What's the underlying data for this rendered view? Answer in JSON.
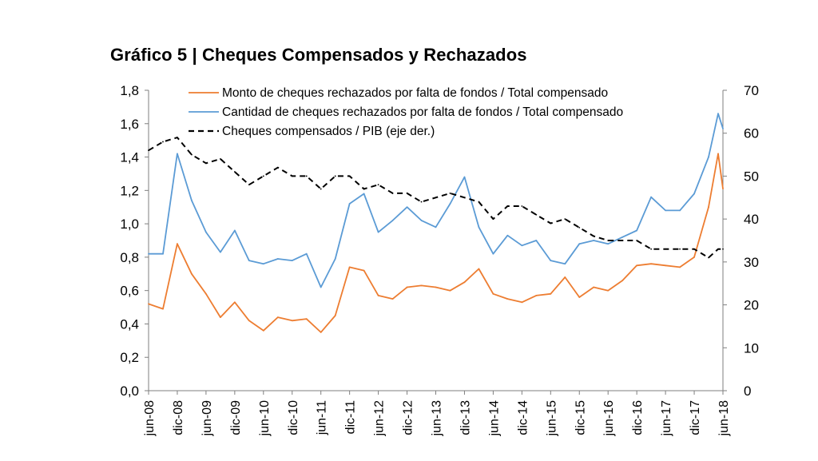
{
  "chart_data": {
    "type": "line",
    "title": "Gráfico 5 | Cheques Compensados y Rechazados",
    "y_left": {
      "min": 0,
      "max": 1.8,
      "step": 0.2,
      "tick_labels": [
        "0,0",
        "0,2",
        "0,4",
        "0,6",
        "0,8",
        "1,0",
        "1,2",
        "1,4",
        "1,6",
        "1,8"
      ]
    },
    "y_right": {
      "min": 0,
      "max": 70,
      "step": 10,
      "tick_labels": [
        "0",
        "10",
        "20",
        "30",
        "40",
        "50",
        "60",
        "70"
      ]
    },
    "x_tick_labels": [
      "jun-08",
      "dic-08",
      "jun-09",
      "dic-09",
      "jun-10",
      "dic-10",
      "jun-11",
      "dic-11",
      "jun-12",
      "dic-12",
      "jun-13",
      "dic-13",
      "jun-14",
      "dic-14",
      "jun-15",
      "dic-15",
      "jun-16",
      "dic-16",
      "jun-17",
      "dic-17",
      "jun-18"
    ],
    "grid": false,
    "legend_position": "top",
    "series": [
      {
        "name": "Monto de cheques rechazados por falta de fondos / Total compensado",
        "axis": "left",
        "color": "#ED7D31",
        "dash": "solid",
        "points": [
          [
            "jun-08",
            0.52
          ],
          [
            "sep-08",
            0.49
          ],
          [
            "dic-08",
            0.88
          ],
          [
            "mar-09",
            0.7
          ],
          [
            "jun-09",
            0.58
          ],
          [
            "sep-09",
            0.44
          ],
          [
            "dic-09",
            0.53
          ],
          [
            "mar-10",
            0.42
          ],
          [
            "jun-10",
            0.36
          ],
          [
            "sep-10",
            0.44
          ],
          [
            "dic-10",
            0.42
          ],
          [
            "mar-11",
            0.43
          ],
          [
            "jun-11",
            0.35
          ],
          [
            "sep-11",
            0.45
          ],
          [
            "dic-11",
            0.74
          ],
          [
            "mar-12",
            0.72
          ],
          [
            "jun-12",
            0.57
          ],
          [
            "sep-12",
            0.55
          ],
          [
            "dic-12",
            0.62
          ],
          [
            "mar-13",
            0.63
          ],
          [
            "jun-13",
            0.62
          ],
          [
            "sep-13",
            0.6
          ],
          [
            "dic-13",
            0.65
          ],
          [
            "mar-14",
            0.73
          ],
          [
            "jun-14",
            0.58
          ],
          [
            "sep-14",
            0.55
          ],
          [
            "dic-14",
            0.53
          ],
          [
            "mar-15",
            0.57
          ],
          [
            "jun-15",
            0.58
          ],
          [
            "sep-15",
            0.68
          ],
          [
            "dic-15",
            0.56
          ],
          [
            "mar-16",
            0.62
          ],
          [
            "jun-16",
            0.6
          ],
          [
            "sep-16",
            0.66
          ],
          [
            "dic-16",
            0.75
          ],
          [
            "mar-17",
            0.76
          ],
          [
            "jun-17",
            0.75
          ],
          [
            "sep-17",
            0.74
          ],
          [
            "dic-17",
            0.8
          ],
          [
            "mar-18",
            1.1
          ],
          [
            "may-18",
            1.42
          ],
          [
            "jun-18",
            1.21
          ]
        ]
      },
      {
        "name": "Cantidad de cheques rechazados por falta de fondos / Total compensado",
        "axis": "left",
        "color": "#5B9BD5",
        "dash": "solid",
        "points": [
          [
            "jun-08",
            0.82
          ],
          [
            "sep-08",
            0.82
          ],
          [
            "dic-08",
            1.42
          ],
          [
            "mar-09",
            1.14
          ],
          [
            "jun-09",
            0.95
          ],
          [
            "sep-09",
            0.83
          ],
          [
            "dic-09",
            0.96
          ],
          [
            "mar-10",
            0.78
          ],
          [
            "jun-10",
            0.76
          ],
          [
            "sep-10",
            0.79
          ],
          [
            "dic-10",
            0.78
          ],
          [
            "mar-11",
            0.82
          ],
          [
            "jun-11",
            0.62
          ],
          [
            "sep-11",
            0.79
          ],
          [
            "dic-11",
            1.12
          ],
          [
            "mar-12",
            1.18
          ],
          [
            "jun-12",
            0.95
          ],
          [
            "sep-12",
            1.02
          ],
          [
            "dic-12",
            1.1
          ],
          [
            "mar-13",
            1.02
          ],
          [
            "jun-13",
            0.98
          ],
          [
            "sep-13",
            1.12
          ],
          [
            "dic-13",
            1.28
          ],
          [
            "mar-14",
            0.98
          ],
          [
            "jun-14",
            0.82
          ],
          [
            "sep-14",
            0.93
          ],
          [
            "dic-14",
            0.87
          ],
          [
            "mar-15",
            0.9
          ],
          [
            "jun-15",
            0.78
          ],
          [
            "sep-15",
            0.76
          ],
          [
            "dic-15",
            0.88
          ],
          [
            "mar-16",
            0.9
          ],
          [
            "jun-16",
            0.88
          ],
          [
            "sep-16",
            0.92
          ],
          [
            "dic-16",
            0.96
          ],
          [
            "mar-17",
            1.16
          ],
          [
            "jun-17",
            1.08
          ],
          [
            "sep-17",
            1.08
          ],
          [
            "dic-17",
            1.18
          ],
          [
            "mar-18",
            1.4
          ],
          [
            "may-18",
            1.66
          ],
          [
            "jun-18",
            1.57
          ]
        ]
      },
      {
        "name": "Cheques compensados / PIB (eje der.)",
        "axis": "right",
        "color": "#000000",
        "dash": "dashed",
        "points": [
          [
            "jun-08",
            56
          ],
          [
            "sep-08",
            58
          ],
          [
            "dic-08",
            59
          ],
          [
            "mar-09",
            55
          ],
          [
            "jun-09",
            53
          ],
          [
            "sep-09",
            54
          ],
          [
            "dic-09",
            51
          ],
          [
            "mar-10",
            48
          ],
          [
            "jun-10",
            50
          ],
          [
            "sep-10",
            52
          ],
          [
            "dic-10",
            50
          ],
          [
            "mar-11",
            50
          ],
          [
            "jun-11",
            47
          ],
          [
            "sep-11",
            50
          ],
          [
            "dic-11",
            50
          ],
          [
            "mar-12",
            47
          ],
          [
            "jun-12",
            48
          ],
          [
            "sep-12",
            46
          ],
          [
            "dic-12",
            46
          ],
          [
            "mar-13",
            44
          ],
          [
            "jun-13",
            45
          ],
          [
            "sep-13",
            46
          ],
          [
            "dic-13",
            45
          ],
          [
            "mar-14",
            44
          ],
          [
            "jun-14",
            40
          ],
          [
            "sep-14",
            43
          ],
          [
            "dic-14",
            43
          ],
          [
            "mar-15",
            41
          ],
          [
            "jun-15",
            39
          ],
          [
            "sep-15",
            40
          ],
          [
            "dic-15",
            38
          ],
          [
            "mar-16",
            36
          ],
          [
            "jun-16",
            35
          ],
          [
            "sep-16",
            35
          ],
          [
            "dic-16",
            35
          ],
          [
            "mar-17",
            33
          ],
          [
            "jun-17",
            33
          ],
          [
            "sep-17",
            33
          ],
          [
            "dic-17",
            33
          ],
          [
            "mar-18",
            31
          ],
          [
            "may-18",
            33
          ],
          [
            "jun-18",
            33
          ]
        ]
      }
    ]
  }
}
